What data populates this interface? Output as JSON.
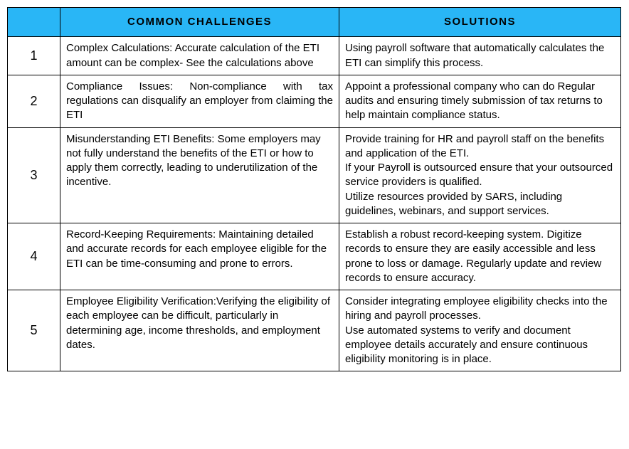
{
  "headers": {
    "col1": "",
    "col2": "COMMON CHALLENGES",
    "col3": "SOLUTIONS"
  },
  "rows": [
    {
      "num": "1",
      "challenge": "Complex Calculations: Accurate calculation of the ETI amount can be complex- See the calculations above",
      "solution": "Using payroll software that automatically calculates the ETI can simplify this process."
    },
    {
      "num": "2",
      "challenge": "Compliance Issues: Non-compliance with tax regulations can disqualify an employer from claiming the ETI",
      "solution": "Appoint a professional company who can do Regular audits and ensuring timely submission of tax returns to help maintain compliance status."
    },
    {
      "num": "3",
      "challenge": "Misunderstanding ETI Benefits: Some employers may not fully understand the benefits of the ETI or how to apply them correctly, leading to underutilization of the incentive.",
      "solution": "Provide training for HR and payroll staff on the benefits and application of the ETI.\nIf your Payroll is outsourced ensure that your outsourced service providers is qualified.\nUtilize resources provided by SARS, including guidelines, webinars, and support services."
    },
    {
      "num": "4",
      "challenge": "Record-Keeping Requirements: Maintaining detailed and accurate records for each employee eligible for the ETI can be time-consuming and prone to errors.",
      "solution": "Establish a robust record-keeping system. Digitize records to ensure they are easily accessible and less prone to loss or damage. Regularly update and review records to ensure accuracy."
    },
    {
      "num": "5",
      "challenge": "Employee Eligibility Verification:Verifying the eligibility of each employee can be difficult, particularly in determining age, income thresholds, and employment dates.",
      "solution": "Consider integrating employee eligibility checks into the hiring and payroll processes.\n Use automated systems to verify and document employee details accurately and ensure continuous eligibility monitoring is in place."
    }
  ],
  "styling": {
    "header_bg": "#29b6f6",
    "border_color": "#000000",
    "text_color": "#000000",
    "row2_challenge_justify": true
  }
}
